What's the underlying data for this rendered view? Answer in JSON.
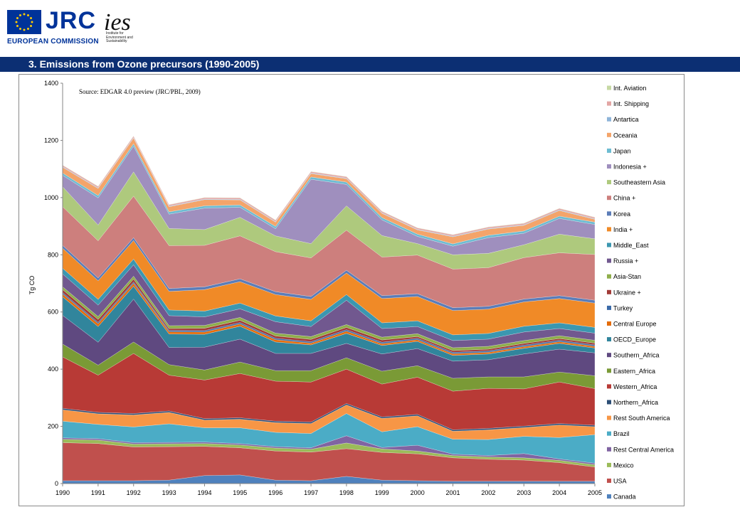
{
  "header": {
    "jrc": "JRC",
    "commission": "EUROPEAN COMMISSION",
    "ies": "ies",
    "ies_subtitle": "Institute for Environment and Sustainability"
  },
  "title": "3. Emissions from Ozone precursors (1990-2005)",
  "chart_data": {
    "type": "area",
    "stacked": true,
    "annotation": "Source: EDGAR 4.0 preview (JRC/PBL, 2009)",
    "ylabel": "Tg CO",
    "xlabel": "",
    "ylim": [
      0,
      1400
    ],
    "yticks": [
      0,
      200,
      400,
      600,
      800,
      1000,
      1200,
      1400
    ],
    "grid": false,
    "legend_position": "right",
    "x": [
      "1990",
      "1991",
      "1992",
      "1993",
      "1994",
      "1995",
      "1996",
      "1997",
      "1998",
      "1999",
      "2000",
      "2001",
      "2002",
      "2003",
      "2004",
      "2005"
    ],
    "series": [
      {
        "name": "Canada",
        "color": "#4f81bd",
        "values": [
          10,
          10,
          10,
          12,
          28,
          30,
          12,
          10,
          25,
          12,
          10,
          8,
          8,
          8,
          8,
          8
        ]
      },
      {
        "name": "USA",
        "color": "#c0504d",
        "values": [
          133,
          130,
          118,
          117,
          102,
          95,
          102,
          100,
          97,
          97,
          94,
          82,
          77,
          74,
          65,
          50
        ]
      },
      {
        "name": "Mexico",
        "color": "#9bbb59",
        "values": [
          12,
          12,
          10,
          10,
          10,
          10,
          10,
          10,
          20,
          12,
          10,
          8,
          8,
          8,
          8,
          8
        ]
      },
      {
        "name": "Rest Central America",
        "color": "#8064a2",
        "values": [
          5,
          5,
          5,
          5,
          5,
          5,
          5,
          5,
          25,
          5,
          20,
          5,
          5,
          15,
          5,
          5
        ]
      },
      {
        "name": "Brazil",
        "color": "#4bacc6",
        "values": [
          58,
          50,
          55,
          65,
          50,
          55,
          50,
          50,
          78,
          55,
          65,
          52,
          56,
          60,
          75,
          100
        ]
      },
      {
        "name": "Rest South America",
        "color": "#f79646",
        "values": [
          40,
          37,
          42,
          40,
          27,
          30,
          34,
          35,
          30,
          47,
          38,
          28,
          34,
          31,
          44,
          28
        ]
      },
      {
        "name": "Northern_Africa",
        "color": "#2c4d75",
        "values": [
          5,
          5,
          5,
          5,
          5,
          5,
          5,
          5,
          5,
          5,
          5,
          5,
          5,
          5,
          5,
          5
        ]
      },
      {
        "name": "Western_Africa",
        "color": "#b83a36",
        "values": [
          180,
          130,
          210,
          125,
          135,
          155,
          140,
          140,
          120,
          115,
          130,
          135,
          140,
          130,
          145,
          128
        ]
      },
      {
        "name": "Eastern_Africa",
        "color": "#7a9a36",
        "values": [
          45,
          35,
          40,
          37,
          35,
          40,
          37,
          40,
          40,
          45,
          40,
          45,
          40,
          42,
          35,
          45
        ]
      },
      {
        "name": "Southern_Africa",
        "color": "#5f4980",
        "values": [
          100,
          80,
          150,
          60,
          80,
          80,
          60,
          60,
          50,
          60,
          60,
          60,
          60,
          80,
          80,
          80
        ]
      },
      {
        "name": "OECD_Europe",
        "color": "#31859c",
        "values": [
          65,
          55,
          45,
          47,
          45,
          45,
          40,
          30,
          35,
          30,
          25,
          20,
          20,
          20,
          20,
          17
        ]
      },
      {
        "name": "Central Europe",
        "color": "#e46c0a",
        "values": [
          10,
          10,
          10,
          8,
          8,
          8,
          8,
          6,
          8,
          6,
          6,
          6,
          6,
          6,
          6,
          6
        ]
      },
      {
        "name": "Turkey",
        "color": "#3a6aa8",
        "values": [
          5,
          5,
          5,
          5,
          5,
          5,
          5,
          5,
          5,
          5,
          5,
          5,
          5,
          5,
          5,
          5
        ]
      },
      {
        "name": "Ukraine +",
        "color": "#a13a37",
        "values": [
          10,
          10,
          10,
          6,
          8,
          8,
          8,
          8,
          8,
          8,
          6,
          6,
          6,
          6,
          6,
          6
        ]
      },
      {
        "name": "Asia-Stan",
        "color": "#8fae4b",
        "values": [
          10,
          10,
          10,
          10,
          10,
          10,
          10,
          10,
          10,
          10,
          10,
          10,
          10,
          10,
          10,
          10
        ]
      },
      {
        "name": "Russia +",
        "color": "#71588f",
        "values": [
          45,
          40,
          40,
          35,
          30,
          30,
          40,
          35,
          85,
          30,
          25,
          25,
          25,
          30,
          25,
          25
        ]
      },
      {
        "name": "Middle_East",
        "color": "#3b97b0",
        "values": [
          20,
          20,
          20,
          20,
          20,
          20,
          20,
          20,
          20,
          20,
          20,
          20,
          20,
          20,
          20,
          20
        ]
      },
      {
        "name": "India +",
        "color": "#f08a27",
        "values": [
          70,
          65,
          65,
          65,
          75,
          75,
          75,
          75,
          75,
          85,
          85,
          85,
          85,
          85,
          85,
          85
        ]
      },
      {
        "name": "Korea",
        "color": "#5b7db8",
        "values": [
          10,
          10,
          10,
          10,
          10,
          10,
          10,
          10,
          10,
          10,
          10,
          10,
          10,
          10,
          10,
          10
        ]
      },
      {
        "name": "China +",
        "color": "#cd7f7d",
        "values": [
          135,
          130,
          145,
          150,
          145,
          150,
          140,
          135,
          140,
          135,
          135,
          135,
          135,
          145,
          150,
          160
        ]
      },
      {
        "name": "Southeastern Asia",
        "color": "#aec97d",
        "values": [
          70,
          55,
          85,
          60,
          55,
          65,
          55,
          50,
          85,
          75,
          40,
          50,
          50,
          45,
          65,
          55
        ]
      },
      {
        "name": "Indonesia +",
        "color": "#9f8fbe",
        "values": [
          40,
          95,
          90,
          50,
          75,
          35,
          25,
          225,
          75,
          55,
          25,
          30,
          55,
          40,
          55,
          50
        ]
      },
      {
        "name": "Japan",
        "color": "#6dbcd2",
        "values": [
          8,
          8,
          8,
          8,
          8,
          8,
          8,
          8,
          8,
          8,
          8,
          8,
          8,
          8,
          8,
          8
        ]
      },
      {
        "name": "Oceania",
        "color": "#f4a46a",
        "values": [
          20,
          25,
          20,
          18,
          22,
          18,
          15,
          12,
          12,
          15,
          15,
          25,
          22,
          20,
          20,
          10
        ]
      },
      {
        "name": "Antartica",
        "color": "#8eb4d9",
        "values": [
          2,
          2,
          2,
          2,
          2,
          2,
          2,
          2,
          2,
          2,
          2,
          2,
          2,
          2,
          2,
          2
        ]
      },
      {
        "name": "Int. Shipping",
        "color": "#e3a6a4",
        "values": [
          5,
          5,
          5,
          5,
          5,
          5,
          5,
          5,
          5,
          5,
          5,
          5,
          5,
          5,
          5,
          5
        ]
      },
      {
        "name": "Int. Aviation",
        "color": "#c6d9a3",
        "values": [
          1,
          1,
          1,
          1,
          1,
          1,
          1,
          1,
          1,
          1,
          1,
          1,
          1,
          1,
          1,
          1
        ]
      }
    ]
  }
}
